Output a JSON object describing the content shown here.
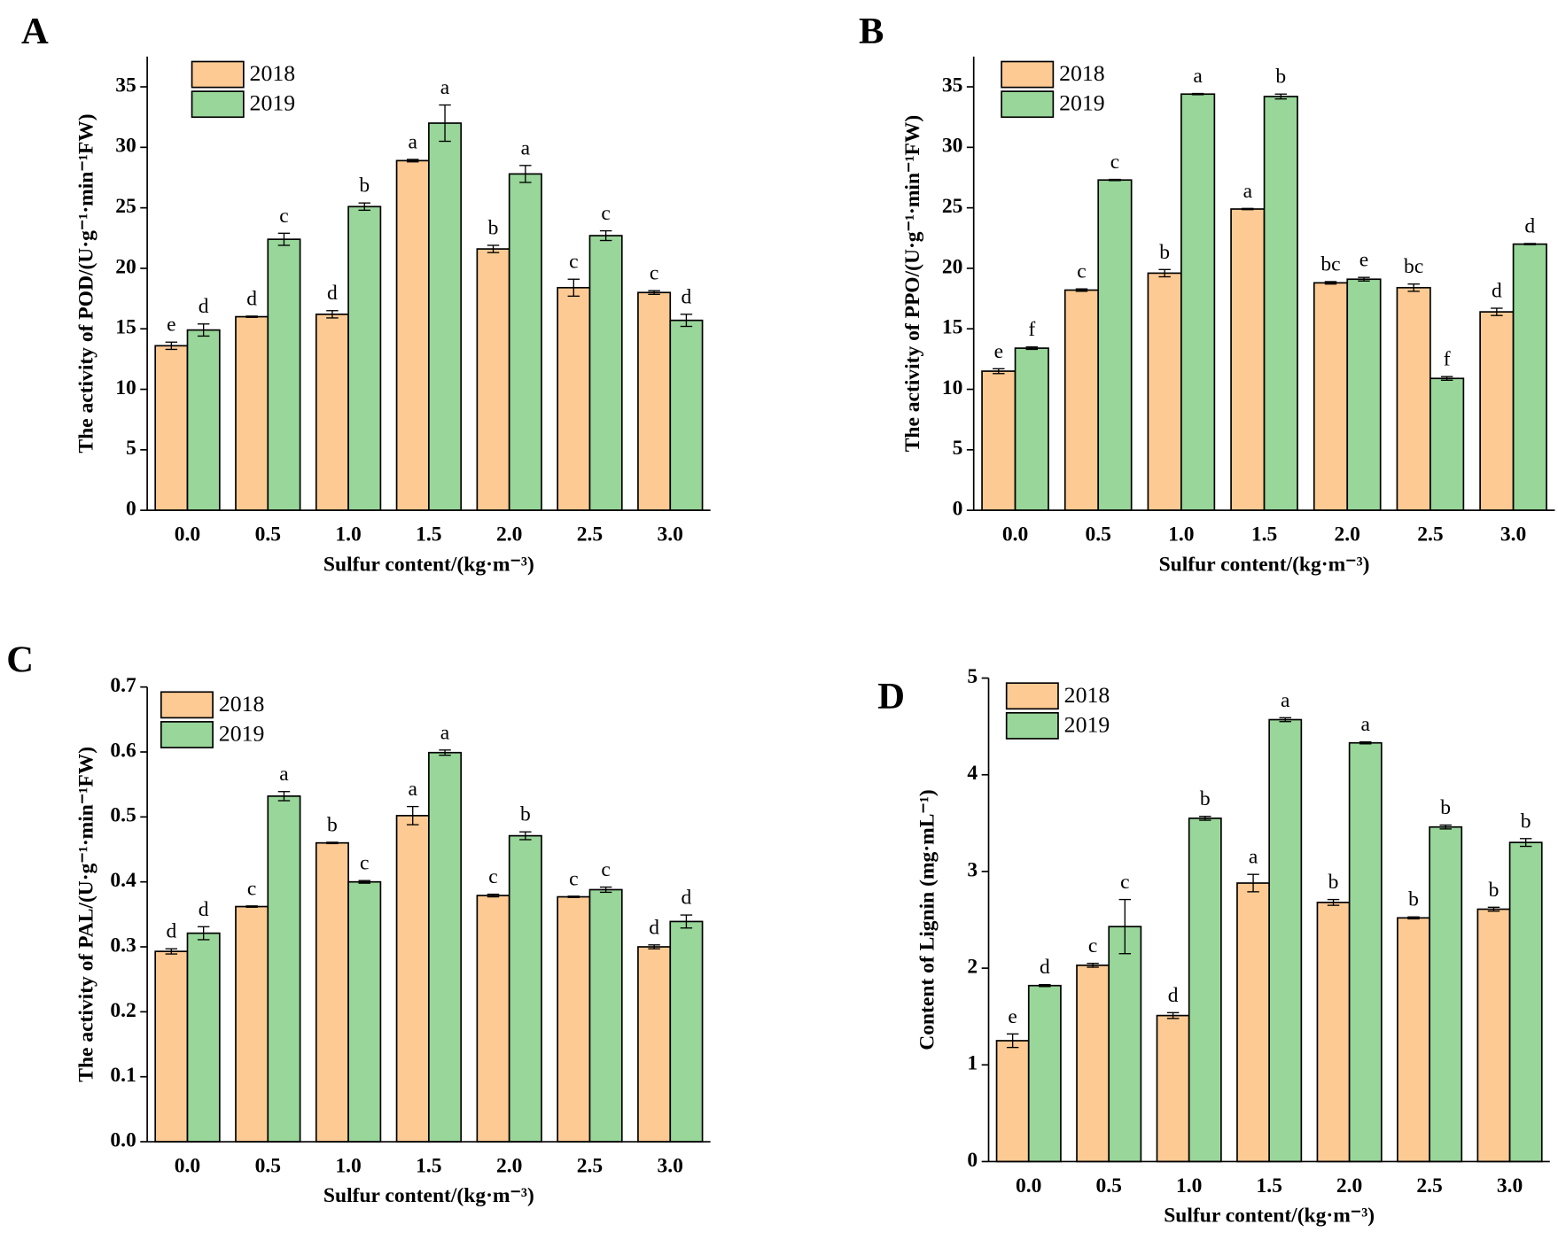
{
  "chart_data": [
    {
      "type": "bar",
      "panel": "A",
      "ylabel": "The activity of POD/(U·g⁻¹·min⁻¹FW)",
      "xlabel": "Sulfur content/(kg·m⁻³)",
      "categories": [
        "0.0",
        "0.5",
        "1.0",
        "1.5",
        "2.0",
        "2.5",
        "3.0"
      ],
      "series": [
        {
          "name": "2018",
          "color": "#fdca93",
          "values": [
            13.6,
            16.0,
            16.2,
            28.9,
            21.6,
            18.4,
            18.0
          ],
          "errors": [
            0.3,
            0.05,
            0.3,
            0.1,
            0.3,
            0.7,
            0.15
          ],
          "letters": [
            "e",
            "d",
            "d",
            "a",
            "b",
            "c",
            "c"
          ]
        },
        {
          "name": "2019",
          "color": "#98d699",
          "values": [
            14.9,
            22.4,
            25.1,
            32.0,
            27.8,
            22.7,
            15.7
          ],
          "errors": [
            0.5,
            0.5,
            0.3,
            1.5,
            0.7,
            0.4,
            0.5
          ],
          "letters": [
            "d",
            "c",
            "b",
            "a",
            "a",
            "c",
            "d"
          ]
        }
      ],
      "ylim": [
        0,
        37.5
      ],
      "yticks": [
        0,
        5,
        10,
        15,
        20,
        25,
        30,
        35
      ]
    },
    {
      "type": "bar",
      "panel": "B",
      "ylabel": "The activity of PPO/(U·g⁻¹·min⁻¹FW)",
      "xlabel": "Sulfur content/(kg·m⁻³)",
      "categories": [
        "0.0",
        "0.5",
        "1.0",
        "1.5",
        "2.0",
        "2.5",
        "3.0"
      ],
      "series": [
        {
          "name": "2018",
          "color": "#fdca93",
          "values": [
            11.5,
            18.2,
            19.6,
            24.9,
            18.8,
            18.4,
            16.4
          ],
          "errors": [
            0.2,
            0.1,
            0.3,
            0.05,
            0.1,
            0.3,
            0.3
          ],
          "letters": [
            "e",
            "c",
            "b",
            "a",
            "bc",
            "bc",
            "d"
          ]
        },
        {
          "name": "2019",
          "color": "#98d699",
          "values": [
            13.4,
            27.3,
            34.4,
            34.2,
            19.1,
            10.9,
            22.0
          ],
          "errors": [
            0.1,
            0.05,
            0.05,
            0.2,
            0.15,
            0.15,
            0.05
          ],
          "letters": [
            "f",
            "c",
            "a",
            "b",
            "e",
            "f",
            "d"
          ]
        }
      ],
      "ylim": [
        0,
        37.5
      ],
      "yticks": [
        0,
        5,
        10,
        15,
        20,
        25,
        30,
        35
      ]
    },
    {
      "type": "bar",
      "panel": "C",
      "ylabel": "The activity of PAL/(U·g⁻¹·min⁻¹FW)",
      "xlabel": "Sulfur content/(kg·m⁻³)",
      "categories": [
        "0.0",
        "0.5",
        "1.0",
        "1.5",
        "2.0",
        "2.5",
        "3.0"
      ],
      "series": [
        {
          "name": "2018",
          "color": "#fdca93",
          "values": [
            0.293,
            0.362,
            0.46,
            0.502,
            0.379,
            0.377,
            0.3
          ],
          "errors": [
            0.004,
            0.001,
            0.001,
            0.014,
            0.002,
            0.001,
            0.003
          ],
          "letters": [
            "d",
            "c",
            "b",
            "a",
            "c",
            "c",
            "d"
          ]
        },
        {
          "name": "2019",
          "color": "#98d699",
          "values": [
            0.321,
            0.532,
            0.4,
            0.599,
            0.471,
            0.388,
            0.339
          ],
          "errors": [
            0.01,
            0.007,
            0.002,
            0.004,
            0.006,
            0.004,
            0.01
          ],
          "letters": [
            "d",
            "a",
            "c",
            "a",
            "b",
            "c",
            "d"
          ]
        }
      ],
      "ylim": [
        0,
        0.7
      ],
      "yticks": [
        {
          "value": 0,
          "label": "0.0"
        },
        0.1,
        0.2,
        0.3,
        0.4,
        0.5,
        0.6,
        0.7
      ]
    },
    {
      "type": "bar",
      "panel": "D",
      "ylabel": "Content of  Lignin (mg·mL⁻¹)",
      "xlabel": "Sulfur content/(kg·m⁻³)",
      "categories": [
        "0.0",
        "0.5",
        "1.0",
        "1.5",
        "2.0",
        "2.5",
        "3.0"
      ],
      "series": [
        {
          "name": "2018",
          "color": "#fdca93",
          "values": [
            1.25,
            2.03,
            1.51,
            2.88,
            2.68,
            2.52,
            2.61
          ],
          "errors": [
            0.07,
            0.02,
            0.03,
            0.09,
            0.03,
            0.01,
            0.02
          ],
          "letters": [
            "e",
            "c",
            "d",
            "a",
            "b",
            "b",
            "b"
          ]
        },
        {
          "name": "2019",
          "color": "#98d699",
          "values": [
            1.82,
            2.43,
            3.55,
            4.57,
            4.33,
            3.46,
            3.3
          ],
          "errors": [
            0.01,
            0.28,
            0.02,
            0.02,
            0.01,
            0.02,
            0.04
          ],
          "letters": [
            "d",
            "c",
            "b",
            "a",
            "a",
            "b",
            "b"
          ]
        }
      ],
      "ylim": [
        0,
        5
      ],
      "yticks": [
        0,
        1,
        2,
        3,
        4,
        5
      ]
    }
  ]
}
